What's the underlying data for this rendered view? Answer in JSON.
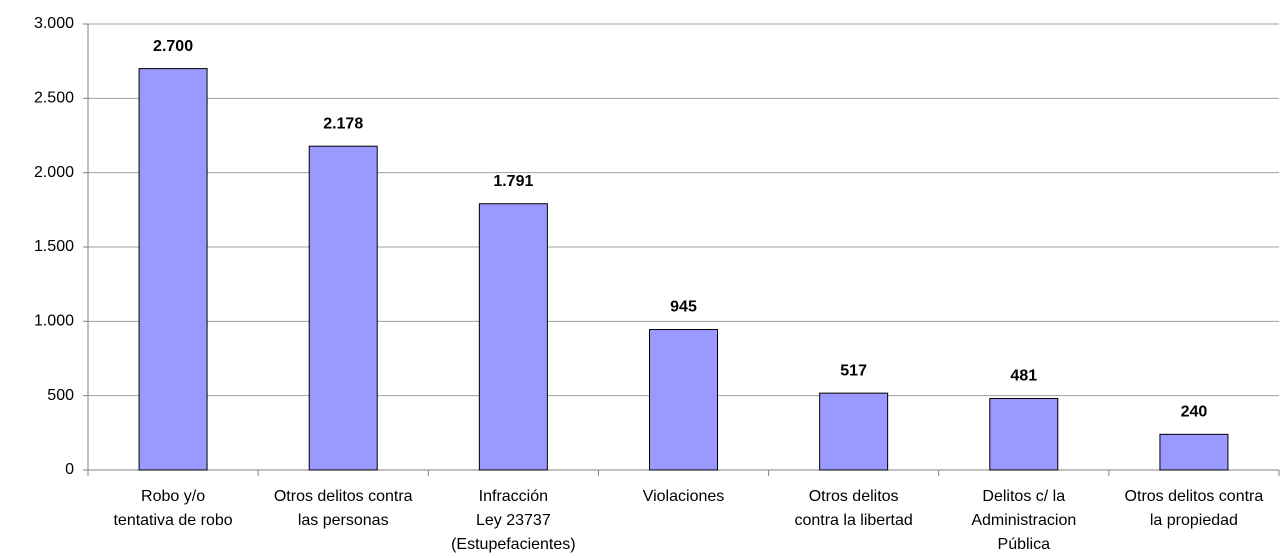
{
  "chart_data": {
    "type": "bar",
    "categories": [
      [
        "Robo y/o",
        "tentativa de robo"
      ],
      [
        "Otros delitos contra",
        "las personas"
      ],
      [
        "Infracción",
        "Ley 23737",
        "(Estupefacientes)"
      ],
      [
        "Violaciones"
      ],
      [
        "Otros delitos",
        "contra la libertad"
      ],
      [
        "Delitos c/ la",
        "Administracion",
        "Pública"
      ],
      [
        "Otros delitos contra",
        "la propiedad"
      ]
    ],
    "values": [
      2700,
      2178,
      1791,
      945,
      517,
      481,
      240
    ],
    "value_labels": [
      "2.700",
      "2.178",
      "1.791",
      "945",
      "517",
      "481",
      "240"
    ],
    "color": "#9999ff",
    "ylim": [
      0,
      3000
    ],
    "yticks": [
      0,
      500,
      {
        "value": 1000,
        "label": "1.000"
      },
      {
        "value": 1500,
        "label": "1.500"
      },
      {
        "value": 2000,
        "label": "2.000"
      },
      {
        "value": 2500,
        "label": "2.500"
      },
      {
        "value": 3000,
        "label": "3.000"
      }
    ],
    "grid": true
  }
}
